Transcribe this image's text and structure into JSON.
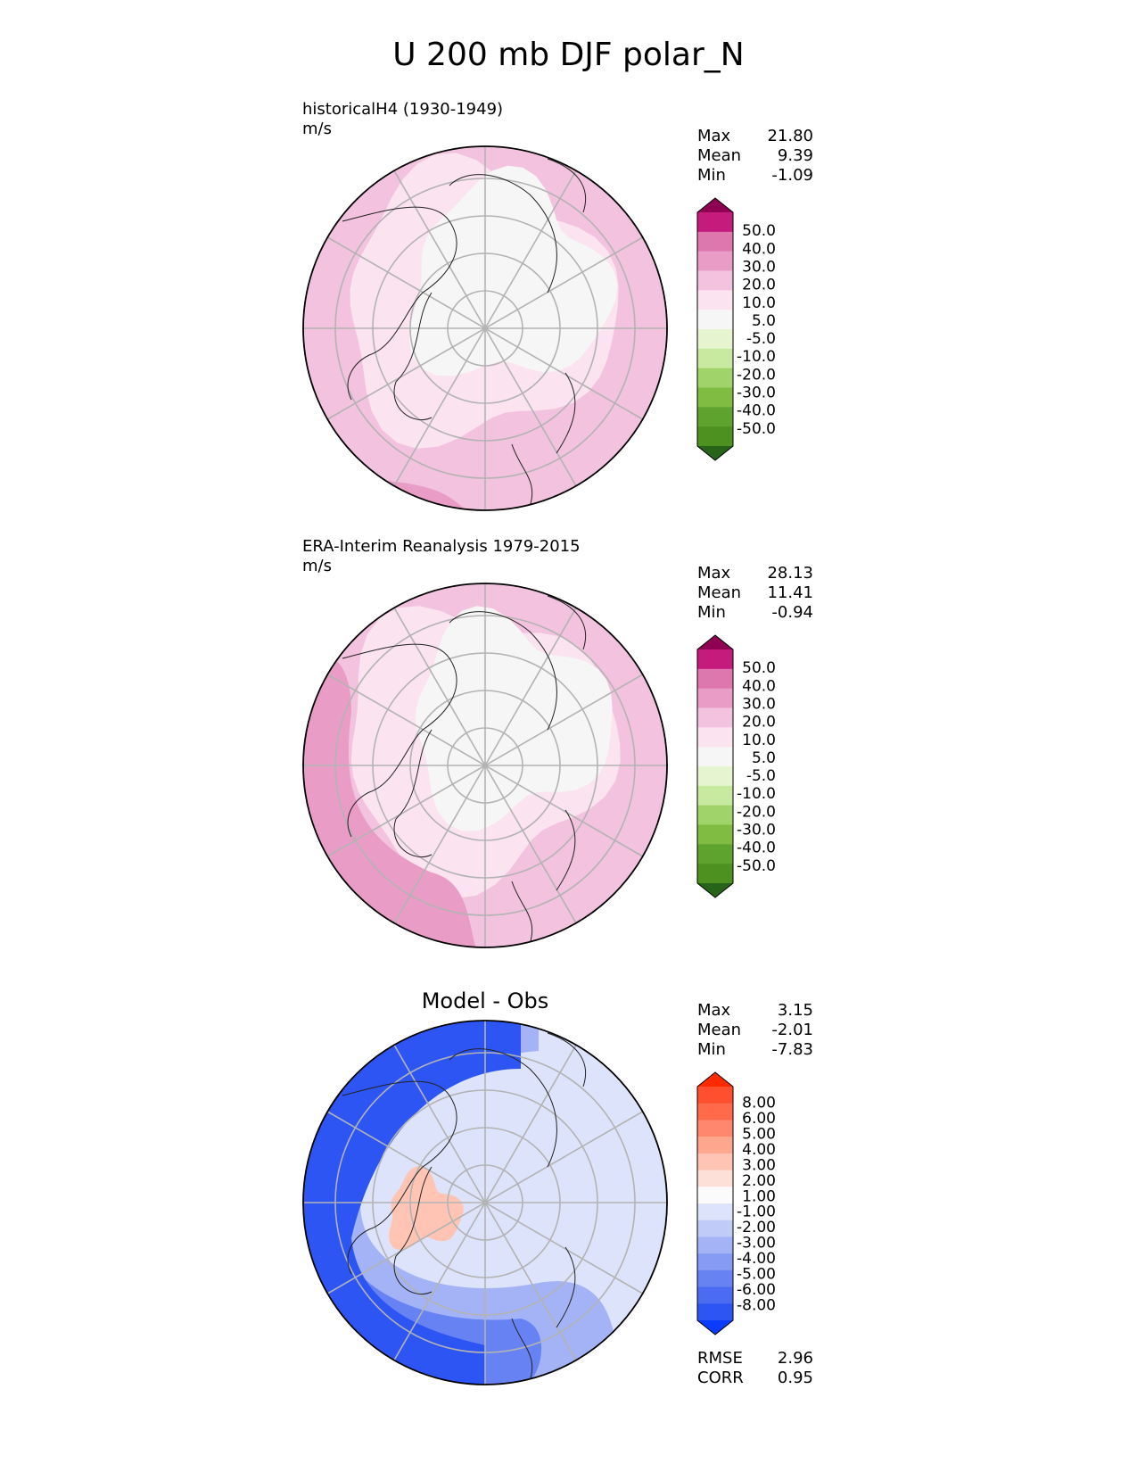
{
  "title": "U 200 mb DJF polar_N",
  "panels": [
    {
      "id": "test",
      "title": "historicalH4 (1930-1949)",
      "units": "m/s",
      "stats": [
        {
          "label": "Max",
          "value": "21.80"
        },
        {
          "label": "Mean",
          "value": "9.39"
        },
        {
          "label": "Min",
          "value": "-1.09"
        }
      ],
      "colorbar": {
        "colors": [
          "#8e0152",
          "#c51b7d",
          "#de77ae",
          "#f1b6da",
          "#fde0ef",
          "#f7f7f7",
          "#e6f5d0",
          "#b8e186",
          "#7fbc41",
          "#4d9221",
          "#276419"
        ],
        "stops": [
          "#8e0152",
          "#c51b7d",
          "#de77ae",
          "#e99cc6",
          "#f3c2de",
          "#fbe3ef",
          "#f6f6f6",
          "#e6f5d0",
          "#c8e9a0",
          "#a0d46a",
          "#7fbc41",
          "#5fa32f",
          "#4d9221",
          "#276419"
        ],
        "tick_labels": [
          "50.0",
          "40.0",
          "30.0",
          "20.0",
          "10.0",
          "5.0",
          "-5.0",
          "-10.0",
          "-20.0",
          "-30.0",
          "-40.0",
          "-50.0"
        ]
      }
    },
    {
      "id": "reference",
      "title": "ERA-Interim Reanalysis 1979-2015",
      "units": "m/s",
      "stats": [
        {
          "label": "Max",
          "value": "28.13"
        },
        {
          "label": "Mean",
          "value": "11.41"
        },
        {
          "label": "Min",
          "value": "-0.94"
        }
      ],
      "colorbar": {
        "stops": [
          "#8e0152",
          "#c51b7d",
          "#de77ae",
          "#e99cc6",
          "#f3c2de",
          "#fbe3ef",
          "#f6f6f6",
          "#e6f5d0",
          "#c8e9a0",
          "#a0d46a",
          "#7fbc41",
          "#5fa32f",
          "#4d9221",
          "#276419"
        ],
        "tick_labels": [
          "50.0",
          "40.0",
          "30.0",
          "20.0",
          "10.0",
          "5.0",
          "-5.0",
          "-10.0",
          "-20.0",
          "-30.0",
          "-40.0",
          "-50.0"
        ]
      }
    },
    {
      "id": "diff",
      "title": "Model - Obs",
      "stats": [
        {
          "label": "Max",
          "value": "3.15"
        },
        {
          "label": "Mean",
          "value": "-2.01"
        },
        {
          "label": "Min",
          "value": "-7.83"
        }
      ],
      "colorbar": {
        "stops": [
          "#ff2a00",
          "#ff4f2e",
          "#ff6a4a",
          "#ff876e",
          "#ffa68f",
          "#ffc4b4",
          "#fde1d9",
          "#fbfbfb",
          "#dde3fb",
          "#c0cbf8",
          "#a3b3f6",
          "#869bf4",
          "#6783f3",
          "#4a6bf2",
          "#2d55f3",
          "#0a3cff"
        ],
        "tick_labels": [
          "8.00",
          "6.00",
          "5.00",
          "4.00",
          "3.00",
          "2.00",
          "1.00",
          "-1.00",
          "-2.00",
          "-3.00",
          "-4.00",
          "-5.00",
          "-6.00",
          "-8.00"
        ]
      },
      "metrics": [
        {
          "label": "RMSE",
          "value": "2.96"
        },
        {
          "label": "CORR",
          "value": "0.95"
        }
      ]
    }
  ],
  "maps": [
    {
      "background": "#f3c2de",
      "fields": [
        {
          "color": "#fbe3ef",
          "shape": "band"
        },
        {
          "color": "#f6f6f6",
          "shape": "core"
        },
        {
          "color": "#e99cc6",
          "shape": "edge"
        }
      ]
    },
    {
      "background": "#f3c2de",
      "fields": [
        {
          "color": "#fbe3ef",
          "shape": "band"
        },
        {
          "color": "#f6f6f6",
          "shape": "core"
        },
        {
          "color": "#e99cc6",
          "shape": "edge"
        }
      ]
    },
    {
      "background": "#fbfbfb",
      "fields": [
        {
          "color": "#dde3fb",
          "shape": "ring"
        },
        {
          "color": "#a3b3f6",
          "shape": "belt"
        },
        {
          "color": "#6783f3",
          "shape": "strong"
        },
        {
          "color": "#2d55f3",
          "shape": "edge"
        },
        {
          "color": "#ffc4b4",
          "shape": "warm"
        }
      ]
    }
  ]
}
